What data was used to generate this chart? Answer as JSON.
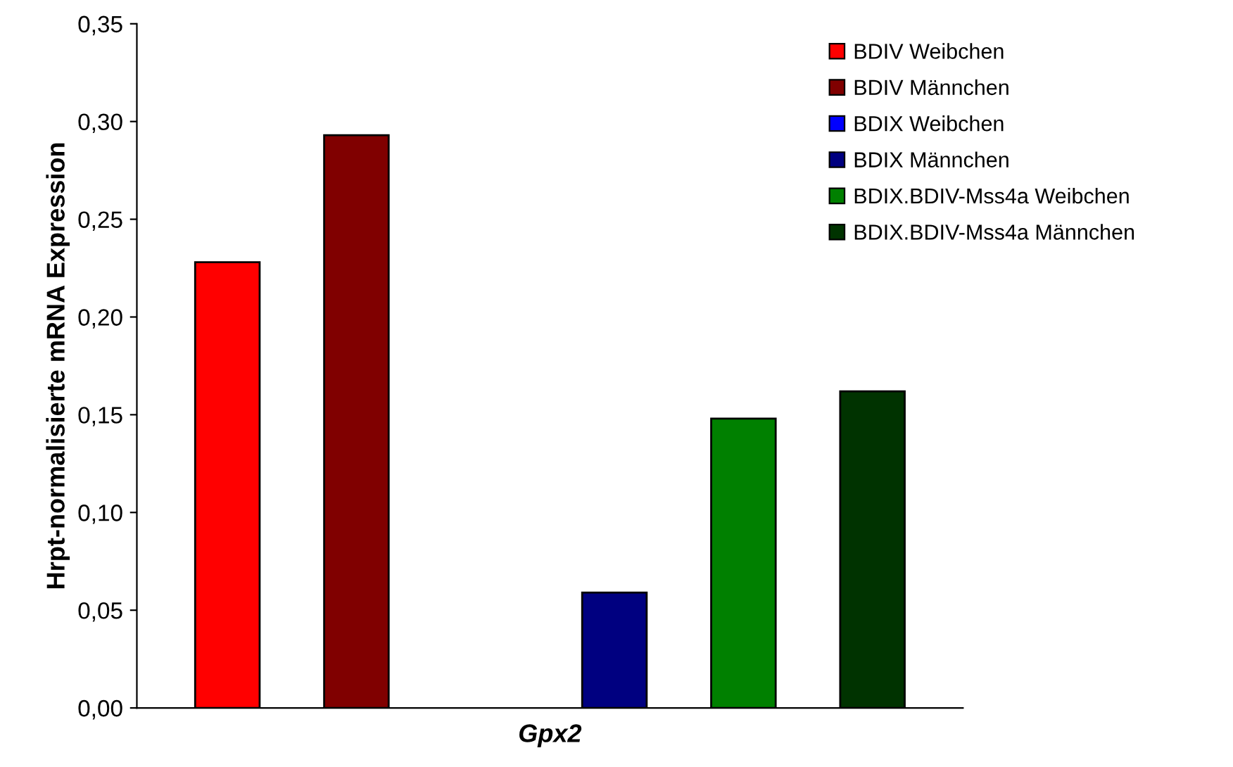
{
  "chart_data": {
    "type": "bar",
    "ylabel": "Hrpt-normalisierte mRNA Expression",
    "categories": [
      "Gpx2"
    ],
    "series": [
      {
        "name": "BDIV Weibchen",
        "color": "#ff0000",
        "values": [
          0.228
        ]
      },
      {
        "name": "BDIV Männchen",
        "color": "#800000",
        "values": [
          0.293
        ]
      },
      {
        "name": "BDIX Weibchen",
        "color": "#0000ff",
        "values": [
          null
        ]
      },
      {
        "name": "BDIX Männchen",
        "color": "#000080",
        "values": [
          0.059
        ]
      },
      {
        "name": "BDIX.BDIV-Mss4a Weibchen",
        "color": "#008000",
        "values": [
          0.148
        ]
      },
      {
        "name": "BDIX.BDIV-Mss4a Männchen",
        "color": "#003300",
        "values": [
          0.162
        ]
      }
    ],
    "ylim": [
      0,
      0.35
    ],
    "yticks": [
      {
        "value": 0,
        "label": "0,00"
      },
      {
        "value": 0.05,
        "label": "0,05"
      },
      {
        "value": 0.1,
        "label": "0,10"
      },
      {
        "value": 0.15,
        "label": "0,15"
      },
      {
        "value": 0.2,
        "label": "0,20"
      },
      {
        "value": 0.25,
        "label": "0,25"
      },
      {
        "value": 0.3,
        "label": "0,30"
      },
      {
        "value": 0.35,
        "label": "0,35"
      }
    ],
    "grid": false,
    "legend": "top right"
  }
}
